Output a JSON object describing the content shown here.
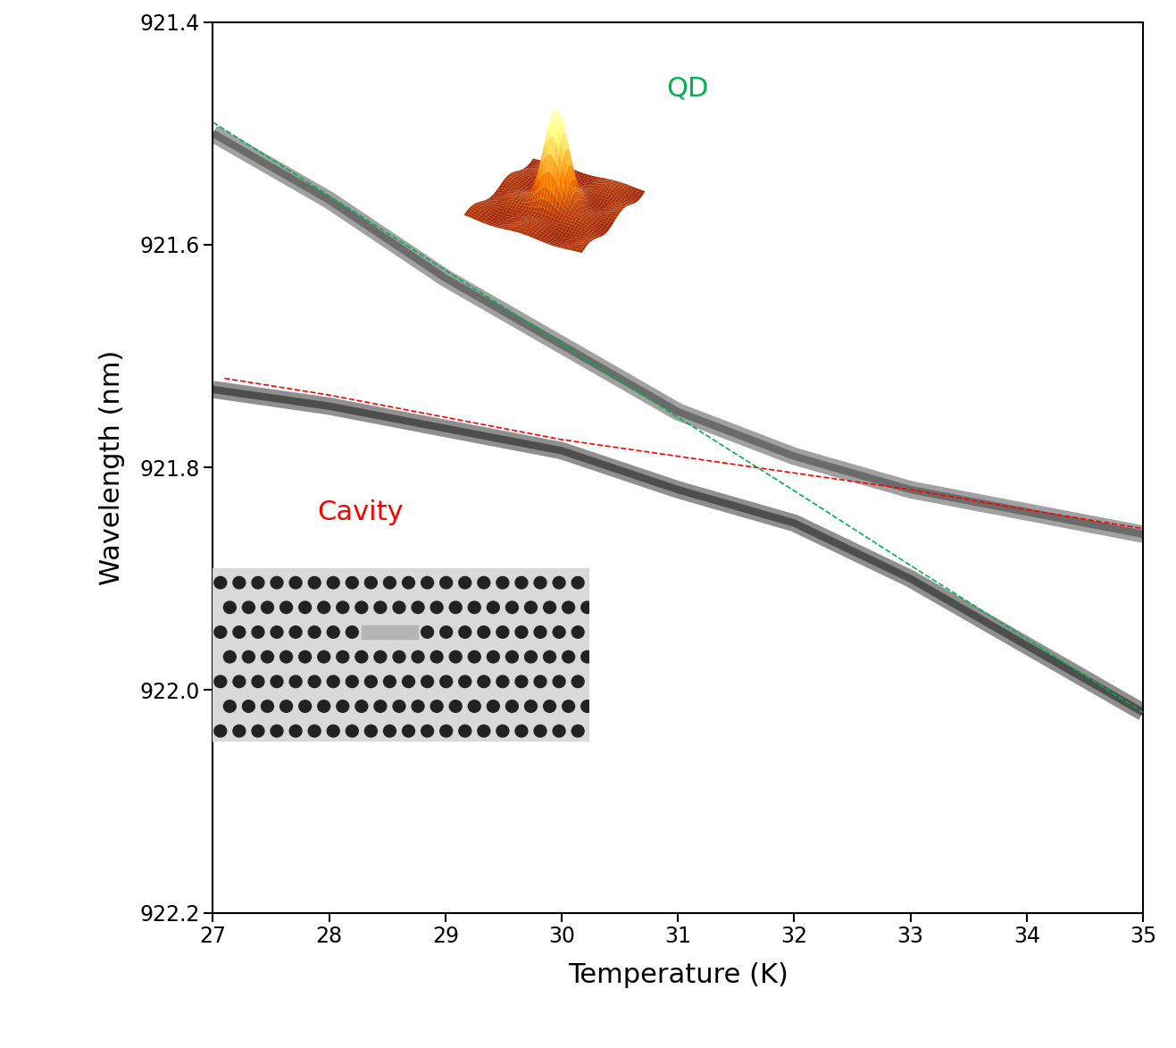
{
  "chart_data": {
    "type": "line",
    "x_label": "Temperature (K)",
    "y_label": "Wavelength (nm)",
    "xlim": [
      27,
      35
    ],
    "ylim": [
      922.2,
      921.4
    ],
    "xticks": [
      27,
      28,
      29,
      30,
      31,
      32,
      33,
      34,
      35
    ],
    "yticks": [
      921.4,
      921.6,
      921.8,
      922.0,
      922.2
    ],
    "grid": false,
    "series": [
      {
        "x": [
          27,
          28,
          29,
          30,
          31,
          31.5,
          32,
          33,
          34,
          35
        ],
        "values": [
          921.5,
          921.56,
          921.63,
          921.69,
          921.75,
          921.77,
          921.79,
          921.82,
          921.84,
          921.86
        ],
        "color": "#555555",
        "line_style": "solid"
      },
      {
        "x": [
          27,
          28,
          29,
          30,
          31,
          31.5,
          32,
          33,
          34,
          35
        ],
        "values": [
          921.73,
          921.745,
          921.765,
          921.785,
          921.82,
          921.835,
          921.85,
          921.9,
          921.96,
          922.02
        ],
        "color": "#333333",
        "line_style": "solid"
      },
      {
        "name": "Cavity",
        "x": [
          27.1,
          28,
          29,
          30,
          31,
          32,
          33,
          34,
          35
        ],
        "values": [
          921.72,
          921.735,
          921.755,
          921.775,
          921.79,
          921.805,
          921.82,
          921.838,
          921.855
        ],
        "color": "#ff0000",
        "line_style": "dashed"
      },
      {
        "name": "QD",
        "x": [
          27,
          28,
          29,
          30,
          31,
          32,
          33,
          34,
          35
        ],
        "values": [
          921.49,
          921.556,
          921.623,
          921.689,
          921.755,
          921.821,
          921.888,
          921.954,
          922.02
        ],
        "color": "#00b050",
        "line_style": "dashed"
      }
    ]
  }
}
